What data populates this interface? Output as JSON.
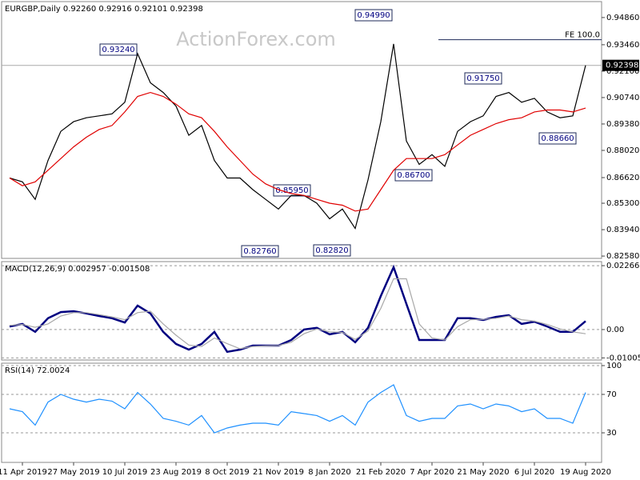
{
  "chart_data": [
    {
      "type": "line",
      "title": "EURGBP,Daily  0.92260 0.92916 0.92101 0.92398",
      "watermark": "ActionForex.com",
      "ylim": [
        0.8246,
        0.9568
      ],
      "yticks": [
        {
          "value": 0.9486,
          "label": "0.94860"
        },
        {
          "value": 0.9346,
          "label": "0.93460"
        },
        {
          "value": 0.921,
          "label": "0.92100"
        },
        {
          "value": 0.9074,
          "label": "0.90740"
        },
        {
          "value": 0.8938,
          "label": "0.89380"
        },
        {
          "value": 0.8802,
          "label": "0.88020"
        },
        {
          "value": 0.8662,
          "label": "0.86620"
        },
        {
          "value": 0.853,
          "label": "0.85300"
        },
        {
          "value": 0.8394,
          "label": "0.83940"
        },
        {
          "value": 0.8258,
          "label": "0.82580"
        }
      ],
      "series": [
        {
          "color": "#000000",
          "values": [
            0.866,
            0.864,
            0.855,
            0.875,
            0.89,
            0.895,
            0.897,
            0.898,
            0.899,
            0.905,
            0.93,
            0.915,
            0.91,
            0.903,
            0.888,
            0.893,
            0.875,
            0.866,
            0.866,
            0.86,
            0.855,
            0.85,
            0.857,
            0.857,
            0.853,
            0.845,
            0.85,
            0.84,
            0.865,
            0.895,
            0.935,
            0.885,
            0.873,
            0.878,
            0.872,
            0.89,
            0.895,
            0.898,
            0.908,
            0.91,
            0.905,
            0.907,
            0.9,
            0.897,
            0.898,
            0.92398
          ]
        },
        {
          "color": "#e00000",
          "values": [
            0.866,
            0.862,
            0.864,
            0.87,
            0.876,
            0.882,
            0.887,
            0.891,
            0.893,
            0.9,
            0.908,
            0.91,
            0.908,
            0.904,
            0.899,
            0.897,
            0.89,
            0.882,
            0.875,
            0.868,
            0.863,
            0.86,
            0.858,
            0.857,
            0.855,
            0.853,
            0.852,
            0.849,
            0.85,
            0.86,
            0.87,
            0.876,
            0.876,
            0.876,
            0.878,
            0.883,
            0.888,
            0.891,
            0.894,
            0.896,
            0.897,
            0.9,
            0.901,
            0.901,
            0.9,
            0.902
          ]
        }
      ],
      "annotations": [
        "0.93240",
        "0.94990",
        "0.91750",
        "0.85950",
        "0.86700",
        "0.88660",
        "0.82760",
        "0.82820"
      ],
      "fe_line": {
        "label": "FE 100.0",
        "value": 0.9372
      },
      "last_label": "0.92398"
    },
    {
      "type": "line",
      "title": "MACD(12,26,9) 0.002957 -0.001508",
      "ylim": [
        -0.0108,
        0.0241
      ],
      "yticks": [
        0.022662,
        {
          "value": 0,
          "label": "0.00"
        },
        -0.010052
      ],
      "series": [
        {
          "color": "#000080",
          "values": [
            0.0011,
            0.002,
            -0.0008,
            0.004,
            0.0062,
            0.0065,
            0.0057,
            0.0048,
            0.004,
            0.0025,
            0.0085,
            0.0057,
            -0.0008,
            -0.0051,
            -0.0071,
            -0.0051,
            -0.0008,
            -0.0079,
            -0.0071,
            -0.0057,
            -0.0057,
            -0.0057,
            -0.0037,
            0,
            0.0006,
            -0.0017,
            -0.0008,
            -0.0045,
            0.0006,
            0.0119,
            0.0221,
            0.0091,
            -0.0037,
            -0.0037,
            -0.0037,
            0.004,
            0.004,
            0.0034,
            0.0045,
            0.0051,
            0.002,
            0.0028,
            0.0011,
            -0.0008,
            -0.0008,
            0.003
          ]
        },
        {
          "color": "#a8a8a8",
          "values": [
            0.0015,
            0.0018,
            0.0008,
            0.002,
            0.0048,
            0.006,
            0.006,
            0.0053,
            0.0045,
            0.0035,
            0.006,
            0.0065,
            0.002,
            -0.002,
            -0.0055,
            -0.006,
            -0.003,
            -0.005,
            -0.0068,
            -0.006,
            -0.0058,
            -0.0057,
            -0.0045,
            -0.0015,
            0.0002,
            -0.0008,
            -0.001,
            -0.0035,
            -0.0005,
            0.0075,
            0.018,
            0.018,
            0.002,
            -0.003,
            -0.0037,
            0.001,
            0.0035,
            0.0036,
            0.004,
            0.0048,
            0.0035,
            0.003,
            0.0018,
            0.0002,
            -0.0008,
            -0.0015
          ]
        }
      ]
    },
    {
      "type": "line",
      "title": "RSI(14) 72.0024",
      "ylim": [
        -0.8,
        102.5
      ],
      "yticks": [
        100,
        70,
        30
      ],
      "categories": [
        null,
        "11 Apr 2019",
        null,
        null,
        null,
        "27 May 2019",
        null,
        null,
        null,
        "10 Jul 2019",
        null,
        null,
        null,
        "23 Aug 2019",
        null,
        null,
        null,
        "8 Oct 2019",
        null,
        null,
        null,
        "21 Nov 2019",
        null,
        null,
        null,
        "8 Jan 2020",
        null,
        null,
        null,
        "21 Feb 2020",
        null,
        null,
        null,
        "7 Apr 2020",
        null,
        null,
        null,
        "21 May 2020",
        null,
        null,
        null,
        "6 Jul 2020",
        null,
        null,
        null,
        "19 Aug 2020"
      ],
      "series": [
        {
          "color": "#1e90ff",
          "values": [
            55,
            52,
            38,
            62,
            70,
            65,
            62,
            65,
            63,
            55,
            72,
            60,
            45,
            42,
            38,
            48,
            30,
            35,
            38,
            40,
            40,
            38,
            52,
            50,
            48,
            42,
            48,
            38,
            62,
            72,
            80,
            48,
            42,
            45,
            45,
            58,
            60,
            55,
            60,
            58,
            52,
            55,
            45,
            45,
            40,
            72
          ]
        }
      ]
    }
  ]
}
